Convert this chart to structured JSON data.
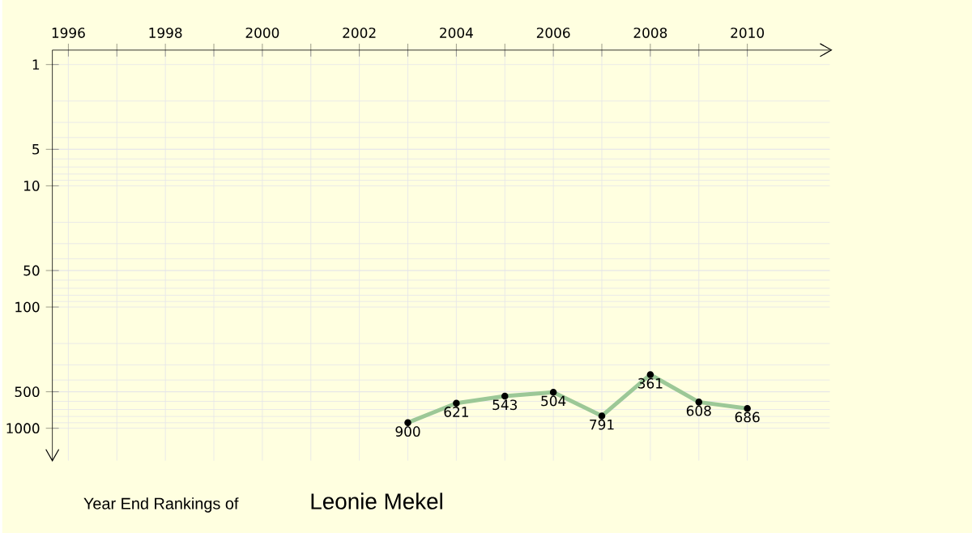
{
  "chart_data": {
    "type": "line",
    "title": "Year End Rankings of",
    "subtitle": "Leonie Mekel",
    "x": [
      2003,
      2004,
      2005,
      2006,
      2007,
      2008,
      2009,
      2010
    ],
    "series": [
      {
        "color": "#9cc897",
        "values": [
          900,
          621,
          543,
          504,
          791,
          361,
          608,
          686
        ]
      }
    ],
    "xlim": [
      1995.67,
      2011.7
    ],
    "xticks": [
      1996,
      {
        "value": 1997,
        "label": null
      },
      1998,
      {
        "value": 1999,
        "label": null
      },
      2000,
      {
        "value": 2001,
        "label": null
      },
      2002,
      {
        "value": 2003,
        "label": null
      },
      2004,
      {
        "value": 2005,
        "label": null
      },
      2006,
      {
        "value": 2007,
        "label": null
      },
      2008,
      {
        "value": 2009,
        "label": null
      },
      2010
    ],
    "ylim": [
      1850,
      0.76
    ],
    "yticks": [
      1,
      5,
      10,
      50,
      100,
      500,
      1000
    ],
    "log": true,
    "grid": true,
    "marker": "circle",
    "line_style": "solid",
    "data_labels": true
  }
}
